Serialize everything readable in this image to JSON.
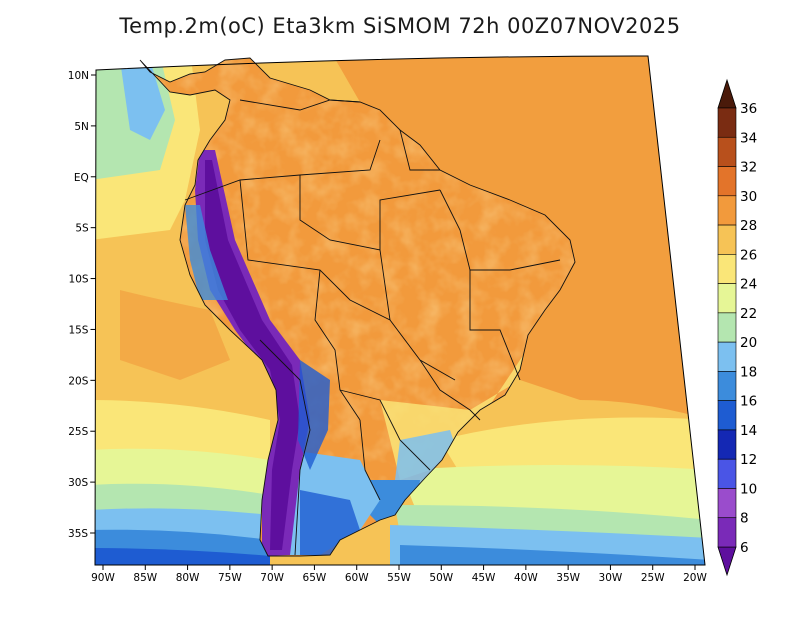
{
  "title": "Temp.2m(oC) Eta3km SiSMOM 72h 00Z07NOV2025",
  "map": {
    "projection": "polyconic",
    "variable": "2 m air temperature",
    "units": "oC",
    "lon_range": [
      -90,
      -20
    ],
    "lat_range": [
      -38,
      12
    ],
    "lon_labels": [
      "90W",
      "85W",
      "80W",
      "75W",
      "70W",
      "65W",
      "60W",
      "55W",
      "50W",
      "45W",
      "40W",
      "35W",
      "30W",
      "25W",
      "20W"
    ],
    "lat_labels": [
      "10N",
      "5N",
      "EQ",
      "5S",
      "10S",
      "15S",
      "20S",
      "25S",
      "30S",
      "35S"
    ]
  },
  "colorbar": {
    "levels": [
      6,
      8,
      10,
      12,
      14,
      16,
      18,
      20,
      22,
      24,
      26,
      28,
      30,
      32,
      34,
      36
    ],
    "labels": [
      "6",
      "8",
      "10",
      "12",
      "14",
      "16",
      "18",
      "20",
      "22",
      "24",
      "26",
      "28",
      "30",
      "32",
      "34",
      "36"
    ],
    "colors": [
      "#5e0f9e",
      "#7a2ab8",
      "#9a4ccc",
      "#4a55e6",
      "#1428b4",
      "#1e5cd2",
      "#3c8cdc",
      "#7cc0f0",
      "#b4e6b0",
      "#e6f696",
      "#fae678",
      "#f6c356",
      "#f29a3c",
      "#e3742a",
      "#b8501c",
      "#7a2c12",
      "#4a1a0a"
    ],
    "extend": "both"
  }
}
